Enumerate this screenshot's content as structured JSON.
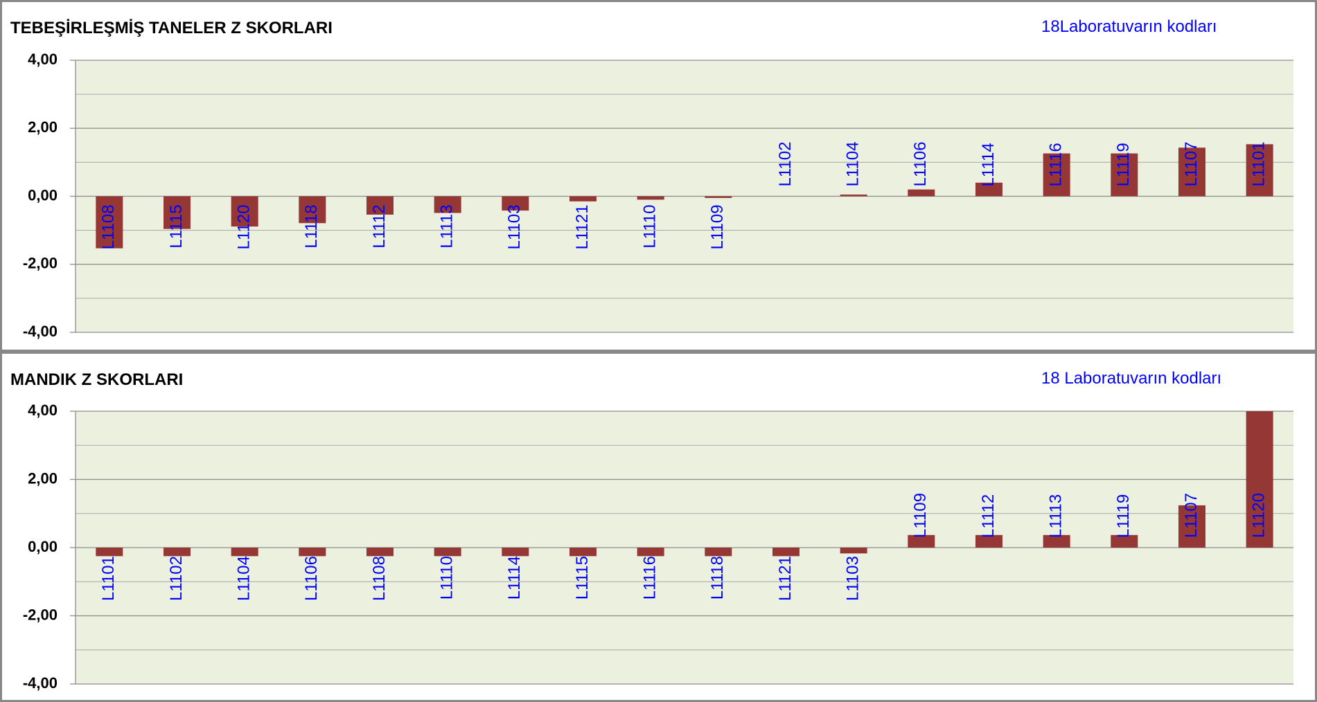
{
  "chart_data": [
    {
      "type": "bar",
      "title": "TEBEŞİRLEŞMİŞ TANELER Z SKORLARI",
      "annotation": "18Laboratuvarın kodları",
      "categories": [
        "L1108",
        "L1115",
        "L1120",
        "L1118",
        "L1112",
        "L1113",
        "L1103",
        "L1121",
        "L1110",
        "L1109",
        "L1102",
        "L1104",
        "L1106",
        "L1114",
        "L1116",
        "L1119",
        "L1107",
        "L1101"
      ],
      "values": [
        -1.53,
        -0.96,
        -0.89,
        -0.79,
        -0.54,
        -0.49,
        -0.42,
        -0.15,
        -0.1,
        -0.05,
        0,
        0.05,
        0.2,
        0.4,
        1.26,
        1.26,
        1.43,
        1.53
      ],
      "color": "#953735",
      "label_color": "#0000ff",
      "ylim": [
        -4,
        4
      ],
      "yticks": [
        {
          "value": -4,
          "label": "-4,00"
        },
        {
          "value": -2,
          "label": "-2,00"
        },
        {
          "value": 0,
          "label": "0,00"
        },
        {
          "value": 2,
          "label": "2,00"
        },
        {
          "value": 4,
          "label": "4,00"
        }
      ],
      "grid": true
    },
    {
      "type": "bar",
      "title": "MANDIK Z SKORLARI",
      "annotation": "18 Laboratuvarın kodları",
      "categories": [
        "L1101",
        "L1102",
        "L1104",
        "L1106",
        "L1108",
        "L1110",
        "L1114",
        "L1115",
        "L1116",
        "L1118",
        "L1121",
        "L1103",
        "L1109",
        "L1112",
        "L1113",
        "L1119",
        "L1107",
        "L1120"
      ],
      "values": [
        -0.25,
        -0.25,
        -0.25,
        -0.25,
        -0.25,
        -0.25,
        -0.25,
        -0.25,
        -0.25,
        -0.25,
        -0.25,
        -0.17,
        0.37,
        0.37,
        0.37,
        0.37,
        1.24,
        4
      ],
      "color": "#953735",
      "label_color": "#0000ff",
      "ylim": [
        -4,
        4
      ],
      "yticks": [
        {
          "value": -4,
          "label": "-4,00"
        },
        {
          "value": -2,
          "label": "-2,00"
        },
        {
          "value": 0,
          "label": "0,00"
        },
        {
          "value": 2,
          "label": "2,00"
        },
        {
          "value": 4,
          "label": "4,00"
        }
      ],
      "grid": true
    }
  ]
}
